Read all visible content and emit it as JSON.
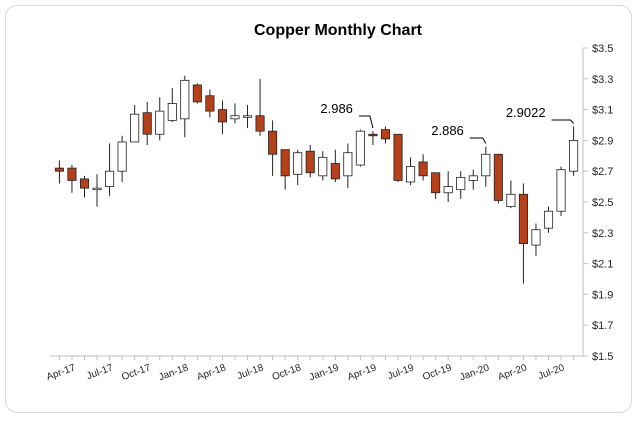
{
  "chart_data": {
    "type": "candlestick",
    "title": "Copper Monthly Chart",
    "xlabel": "",
    "ylabel": "",
    "ylim": [
      1.5,
      3.5
    ],
    "y_ticks": [
      "$3.5",
      "$3.3",
      "$3.1",
      "$2.9",
      "$2.7",
      "$2.5",
      "$2.3",
      "$2.1",
      "$1.9",
      "$1.7",
      "$1.5"
    ],
    "y_tick_values": [
      3.5,
      3.3,
      3.1,
      2.9,
      2.7,
      2.5,
      2.3,
      2.1,
      1.9,
      1.7,
      1.5
    ],
    "x_tick_labels": [
      "Apr-17",
      "Jul-17",
      "Oct-17",
      "Jan-18",
      "Apr-18",
      "Jul-18",
      "Oct-18",
      "Jan-19",
      "Apr-19",
      "Jul-19",
      "Oct-19",
      "Jan-20",
      "Apr-20",
      "Jul-20"
    ],
    "grid": false,
    "legend": "none",
    "colors": {
      "up_fill": "#ffffff",
      "down_fill": "#b5411b",
      "outline": "#222222"
    },
    "candles": [
      {
        "date": "Mar-17",
        "open": 2.72,
        "high": 2.77,
        "low": 2.62,
        "close": 2.7
      },
      {
        "date": "Apr-17",
        "open": 2.72,
        "high": 2.74,
        "low": 2.56,
        "close": 2.64
      },
      {
        "date": "May-17",
        "open": 2.65,
        "high": 2.67,
        "low": 2.53,
        "close": 2.59
      },
      {
        "date": "Jun-17",
        "open": 2.58,
        "high": 2.68,
        "low": 2.47,
        "close": 2.59
      },
      {
        "date": "Jul-17",
        "open": 2.6,
        "high": 2.88,
        "low": 2.54,
        "close": 2.7
      },
      {
        "date": "Aug-17",
        "open": 2.7,
        "high": 2.93,
        "low": 2.63,
        "close": 2.89
      },
      {
        "date": "Sep-17",
        "open": 2.89,
        "high": 3.13,
        "low": 2.89,
        "close": 3.07
      },
      {
        "date": "Oct-17",
        "open": 3.08,
        "high": 3.15,
        "low": 2.87,
        "close": 2.94
      },
      {
        "date": "Nov-17",
        "open": 2.94,
        "high": 3.18,
        "low": 2.9,
        "close": 3.09
      },
      {
        "date": "Dec-17",
        "open": 3.03,
        "high": 3.24,
        "low": 3.02,
        "close": 3.14
      },
      {
        "date": "Jan-18",
        "open": 3.04,
        "high": 3.32,
        "low": 2.92,
        "close": 3.29
      },
      {
        "date": "Feb-18",
        "open": 3.26,
        "high": 3.27,
        "low": 3.14,
        "close": 3.15
      },
      {
        "date": "Mar-18",
        "open": 3.19,
        "high": 3.23,
        "low": 3.05,
        "close": 3.09
      },
      {
        "date": "Apr-18",
        "open": 3.1,
        "high": 3.16,
        "low": 2.94,
        "close": 3.02
      },
      {
        "date": "May-18",
        "open": 3.04,
        "high": 3.14,
        "low": 3.01,
        "close": 3.06
      },
      {
        "date": "Jun-18",
        "open": 3.05,
        "high": 3.13,
        "low": 2.98,
        "close": 3.06
      },
      {
        "date": "Jul-18",
        "open": 3.06,
        "high": 3.3,
        "low": 2.93,
        "close": 2.96
      },
      {
        "date": "Aug-18",
        "open": 2.96,
        "high": 3.03,
        "low": 2.67,
        "close": 2.81
      },
      {
        "date": "Sep-18",
        "open": 2.84,
        "high": 2.84,
        "low": 2.58,
        "close": 2.67
      },
      {
        "date": "Oct-18",
        "open": 2.68,
        "high": 2.84,
        "low": 2.61,
        "close": 2.82
      },
      {
        "date": "Nov-18",
        "open": 2.83,
        "high": 2.87,
        "low": 2.66,
        "close": 2.69
      },
      {
        "date": "Dec-18",
        "open": 2.67,
        "high": 2.83,
        "low": 2.64,
        "close": 2.79
      },
      {
        "date": "Jan-19",
        "open": 2.75,
        "high": 2.84,
        "low": 2.63,
        "close": 2.65
      },
      {
        "date": "Feb-19",
        "open": 2.67,
        "high": 2.88,
        "low": 2.59,
        "close": 2.82
      },
      {
        "date": "Mar-19",
        "open": 2.74,
        "high": 2.97,
        "low": 2.73,
        "close": 2.96
      },
      {
        "date": "Apr-19",
        "open": 2.94,
        "high": 2.96,
        "low": 2.87,
        "close": 2.93
      },
      {
        "date": "May-19",
        "open": 2.97,
        "high": 2.99,
        "low": 2.88,
        "close": 2.91
      },
      {
        "date": "Jun-19",
        "open": 2.94,
        "high": 2.94,
        "low": 2.63,
        "close": 2.64
      },
      {
        "date": "Jul-19",
        "open": 2.63,
        "high": 2.79,
        "low": 2.61,
        "close": 2.73
      },
      {
        "date": "Aug-19",
        "open": 2.76,
        "high": 2.81,
        "low": 2.64,
        "close": 2.67
      },
      {
        "date": "Sep-19",
        "open": 2.69,
        "high": 2.69,
        "low": 2.52,
        "close": 2.56
      },
      {
        "date": "Oct-19",
        "open": 2.56,
        "high": 2.7,
        "low": 2.5,
        "close": 2.6
      },
      {
        "date": "Nov-19",
        "open": 2.58,
        "high": 2.7,
        "low": 2.52,
        "close": 2.66
      },
      {
        "date": "Dec-19",
        "open": 2.64,
        "high": 2.71,
        "low": 2.58,
        "close": 2.67
      },
      {
        "date": "Jan-20",
        "open": 2.67,
        "high": 2.86,
        "low": 2.6,
        "close": 2.81
      },
      {
        "date": "Feb-20",
        "open": 2.81,
        "high": 2.81,
        "low": 2.49,
        "close": 2.51
      },
      {
        "date": "Mar-20",
        "open": 2.47,
        "high": 2.64,
        "low": 2.46,
        "close": 2.55
      },
      {
        "date": "Apr-20",
        "open": 2.55,
        "high": 2.62,
        "low": 1.97,
        "close": 2.23
      },
      {
        "date": "May-20",
        "open": 2.22,
        "high": 2.36,
        "low": 2.15,
        "close": 2.32
      },
      {
        "date": "Jun-20",
        "open": 2.33,
        "high": 2.47,
        "low": 2.3,
        "close": 2.44
      },
      {
        "date": "Jul-20",
        "open": 2.44,
        "high": 2.73,
        "low": 2.41,
        "close": 2.71
      },
      {
        "date": "Aug-20",
        "open": 2.7,
        "high": 2.99,
        "low": 2.67,
        "close": 2.9
      }
    ],
    "annotations": [
      {
        "text": "2.986",
        "value": 2.986,
        "date": "Apr-19"
      },
      {
        "text": "2.886",
        "value": 2.886,
        "date": "Jan-20"
      },
      {
        "text": "2.9022",
        "value": 2.9022,
        "date": "Aug-20"
      }
    ]
  }
}
